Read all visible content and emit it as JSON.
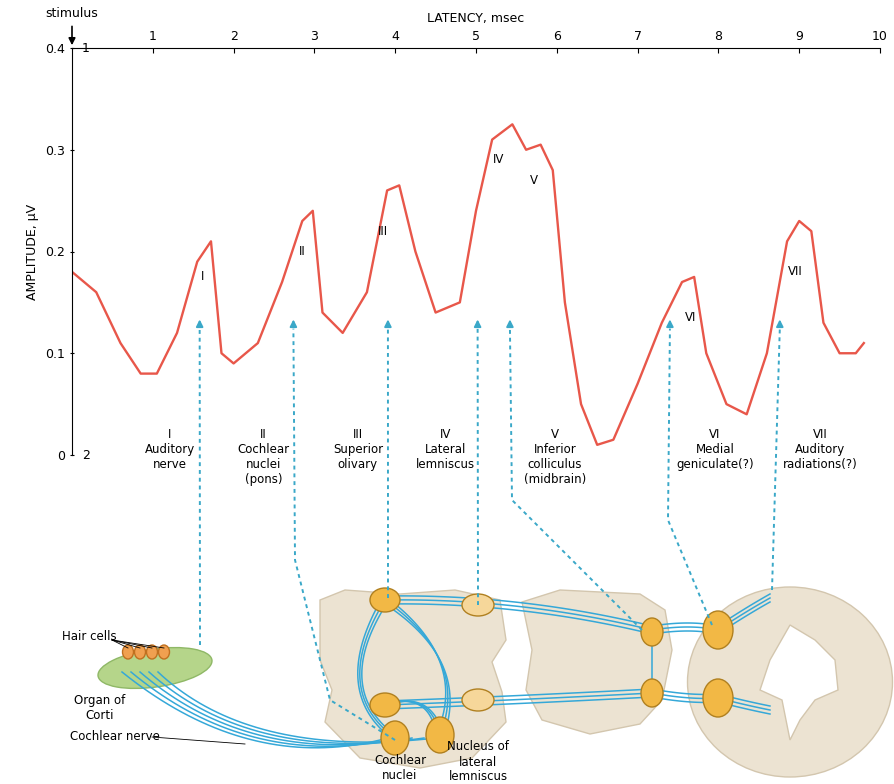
{
  "chart_data": {
    "type": "line",
    "x_label": "LATENCY, msec",
    "y_label": "AMPLITUDE, μV",
    "x": [
      0,
      0.3,
      0.6,
      0.85,
      1.05,
      1.3,
      1.55,
      1.72,
      1.85,
      2.0,
      2.3,
      2.6,
      2.85,
      2.98,
      3.1,
      3.35,
      3.65,
      3.9,
      4.05,
      4.25,
      4.5,
      4.8,
      5.0,
      5.2,
      5.45,
      5.62,
      5.8,
      5.95,
      6.1,
      6.3,
      6.5,
      6.7,
      7.0,
      7.3,
      7.55,
      7.7,
      7.85,
      8.1,
      8.35,
      8.6,
      8.85,
      9.0,
      9.15,
      9.3,
      9.5,
      9.7,
      9.8
    ],
    "values": [
      0.18,
      0.16,
      0.11,
      0.08,
      0.08,
      0.12,
      0.19,
      0.21,
      0.1,
      0.09,
      0.11,
      0.17,
      0.23,
      0.24,
      0.14,
      0.12,
      0.16,
      0.26,
      0.265,
      0.2,
      0.14,
      0.15,
      0.24,
      0.31,
      0.325,
      0.3,
      0.305,
      0.28,
      0.15,
      0.05,
      0.01,
      0.015,
      0.07,
      0.13,
      0.17,
      0.175,
      0.1,
      0.05,
      0.04,
      0.1,
      0.21,
      0.23,
      0.22,
      0.13,
      0.1,
      0.1,
      0.11
    ],
    "color": "#e8574a",
    "xlim": [
      0,
      10
    ],
    "xticks": [
      1,
      2,
      3,
      4,
      5,
      6,
      7,
      8,
      9,
      10
    ],
    "ylim": [
      0,
      0.4
    ],
    "yticks": [
      0,
      0.1,
      0.2,
      0.3,
      0.4
    ],
    "stimulus": {
      "label": "stimulus",
      "x": 0
    },
    "trace_labels": [
      {
        "value": 0.4,
        "label": "1"
      },
      {
        "value": 0,
        "label": "2"
      }
    ],
    "wave_labels": [
      {
        "label": "I",
        "x": 1.62,
        "y": 0.175
      },
      {
        "label": "II",
        "x": 2.85,
        "y": 0.2
      },
      {
        "label": "III",
        "x": 3.85,
        "y": 0.22
      },
      {
        "label": "IV",
        "x": 5.28,
        "y": 0.29
      },
      {
        "label": "V",
        "x": 5.72,
        "y": 0.27
      },
      {
        "label": "VI",
        "x": 7.65,
        "y": 0.135
      },
      {
        "label": "VII",
        "x": 8.95,
        "y": 0.18
      }
    ],
    "structures": [
      {
        "wave": "I",
        "name": "Auditory\nnerve",
        "x": 1.58
      },
      {
        "wave": "II",
        "name": "Cochlear\nnuclei\n(pons)",
        "x": 2.74
      },
      {
        "wave": "III",
        "name": "Superior\nolivary",
        "x": 3.91
      },
      {
        "wave": "IV",
        "name": "Lateral\nlemniscus",
        "x": 5.02
      },
      {
        "wave": "V",
        "name": "Inferior\ncolliculus\n(midbrain)",
        "x": 5.42
      },
      {
        "wave": "VI",
        "name": "Medial\ngeniculate(?)",
        "x": 7.4
      },
      {
        "wave": "VII",
        "name": "Auditory\nradiations(?)",
        "x": 8.76
      }
    ]
  },
  "diagram": {
    "labels": {
      "hair_cells": "Hair cells",
      "organ": "Organ of\nCorti",
      "nerve": "Cochlear nerve",
      "cochlear_nuclei": "Cochlear\nnuclei",
      "lateral_lemniscus_nucleus": "Nucleus of\nlateral\nlemniscus"
    }
  }
}
